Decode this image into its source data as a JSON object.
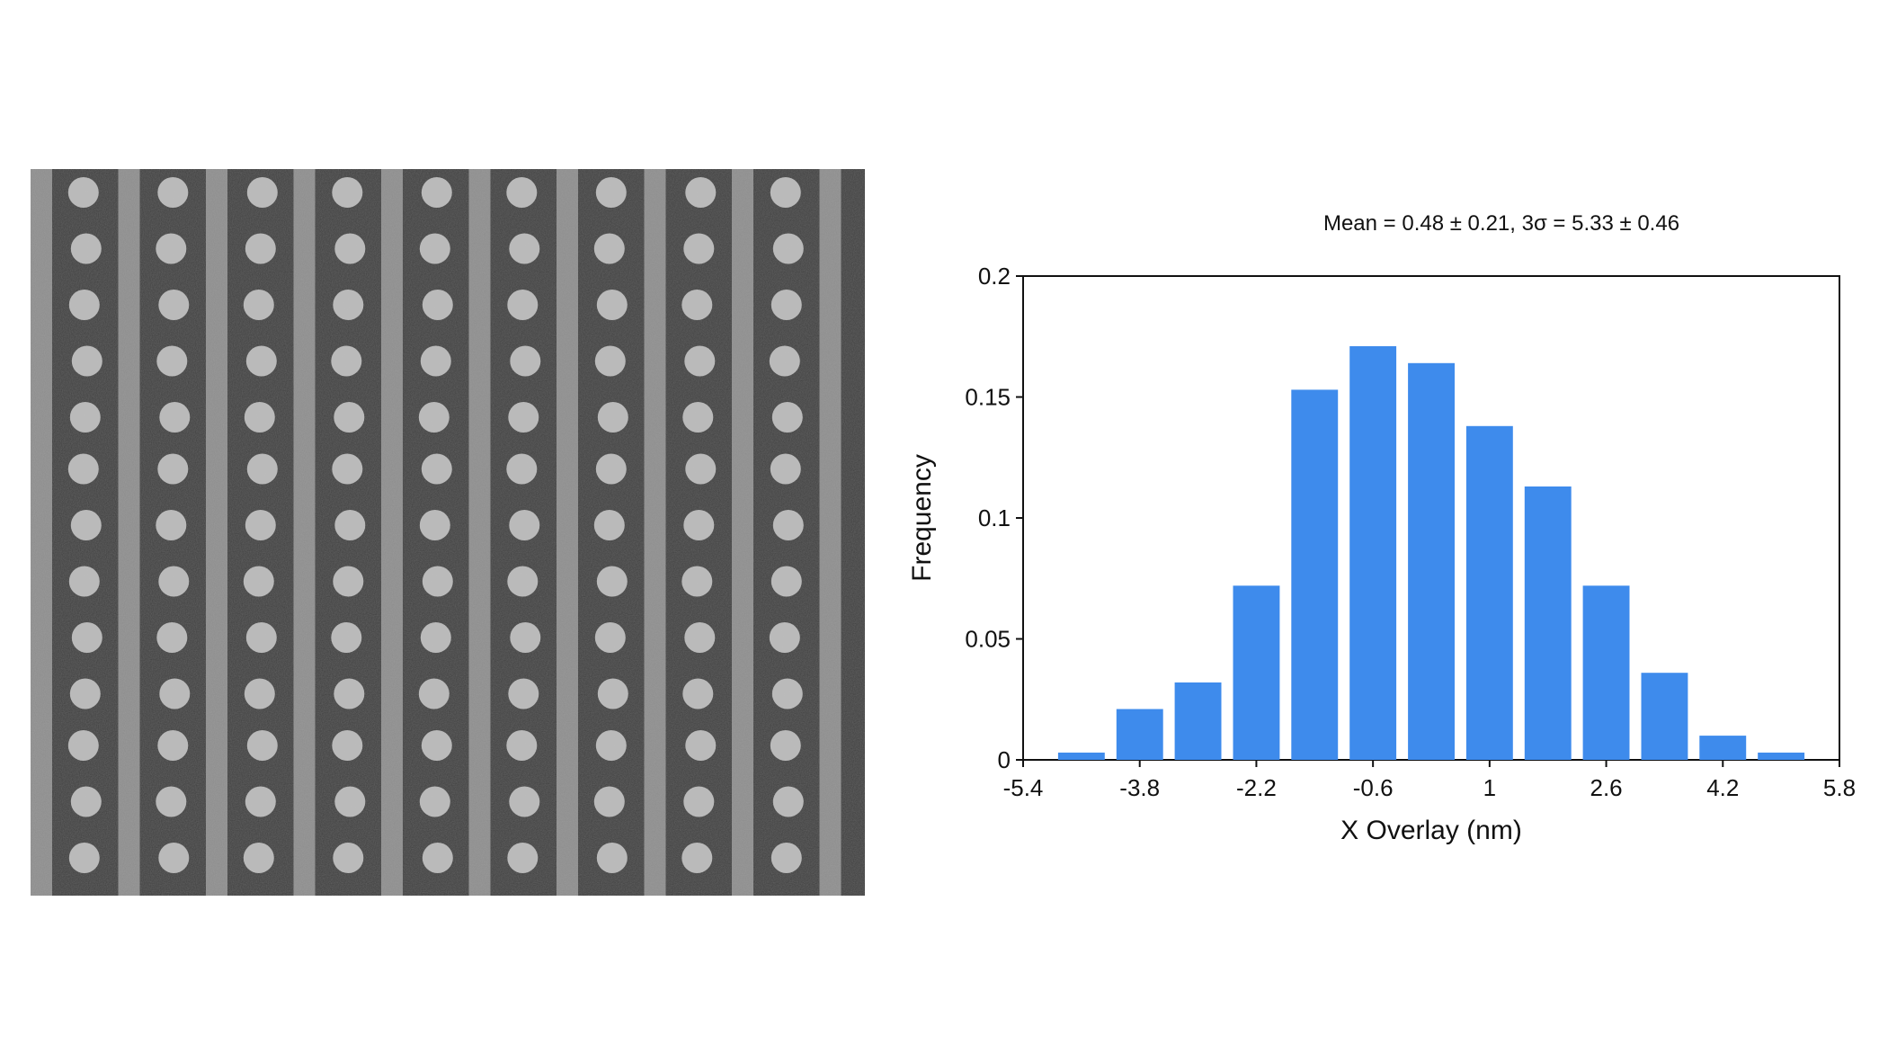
{
  "image": {
    "kind": "SEM micrograph",
    "colors": {
      "background": "#3e3e3e",
      "line": "#9a9a9a",
      "dot": "#c8c8c8"
    }
  },
  "chart_data": {
    "type": "bar",
    "stats_text": "Mean = 0.48 ± 0.21,    3σ = 5.33 ± 0.46",
    "title": "",
    "xlabel": "X Overlay (nm)",
    "ylabel": "Frequency",
    "x_ticks": [
      "-5.4",
      "-3.8",
      "-2.2",
      "-0.6",
      "1",
      "2.6",
      "4.2",
      "5.8"
    ],
    "x_tick_values": [
      -5.4,
      -3.8,
      -2.2,
      -0.6,
      1,
      2.6,
      4.2,
      5.8
    ],
    "y_ticks": [
      "0",
      "0.05",
      "0.1",
      "0.15",
      "0.2"
    ],
    "y_tick_values": [
      0,
      0.05,
      0.1,
      0.15,
      0.2
    ],
    "xlim": [
      -5.4,
      5.8
    ],
    "ylim": [
      0,
      0.2
    ],
    "bin_centers": [
      -4.6,
      -3.8,
      -3.0,
      -2.2,
      -1.4,
      -0.6,
      0.2,
      1.0,
      1.8,
      2.6,
      3.4,
      4.2,
      5.0
    ],
    "values": [
      0.003,
      0.021,
      0.032,
      0.072,
      0.153,
      0.171,
      0.164,
      0.138,
      0.113,
      0.072,
      0.036,
      0.01,
      0.003
    ],
    "bar_color": "#3e8bec",
    "grid": false,
    "legend": "none"
  }
}
